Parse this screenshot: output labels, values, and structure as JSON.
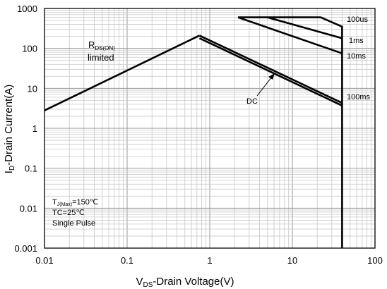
{
  "chart_data": {
    "type": "line",
    "title": "",
    "xscale": "log",
    "yscale": "log",
    "xlim": [
      0.01,
      100
    ],
    "ylim": [
      0.001,
      1000
    ],
    "x_tick_labels": [
      "0.01",
      "0.1",
      "1",
      "10",
      "100"
    ],
    "y_tick_labels": [
      "1000",
      "100",
      "10",
      "1",
      "0.1",
      "0.01",
      "0.001"
    ],
    "xlabel": {
      "main": "V",
      "sub": "DS",
      "rest": "-Drain Voltage(V)"
    },
    "ylabel": {
      "main": "I",
      "sub": "D",
      "rest": "-Drain Current(A)"
    },
    "grid": true,
    "series": [
      {
        "name": "RDS(ON) limited",
        "x": [
          0.01,
          0.75
        ],
        "y": [
          2.8,
          210
        ]
      },
      {
        "name": "100us",
        "x": [
          2.2,
          22,
          40,
          40
        ],
        "y": [
          600,
          600,
          350,
          0.001
        ]
      },
      {
        "name": "1ms",
        "x": [
          5,
          40
        ],
        "y": [
          600,
          180
        ]
      },
      {
        "name": "10ms",
        "x": [
          2.2,
          40
        ],
        "y": [
          600,
          75
        ]
      },
      {
        "name": "100ms",
        "x": [
          0.75,
          40
        ],
        "y": [
          210,
          4.3
        ]
      },
      {
        "name": "DC",
        "x": [
          0.75,
          40
        ],
        "y": [
          180,
          3.7
        ]
      }
    ],
    "labels": {
      "us100": "100us",
      "ms1": "1ms",
      "ms10": "10ms",
      "ms100": "100ms",
      "dc": "DC",
      "rds_main": "R",
      "rds_sub": "DS(ON)",
      "rds_line2": "limited"
    },
    "conditions": {
      "line1_main": "T",
      "line1_sub": "J(Max)",
      "line1_rest": "=150℃",
      "line2": "TC=25℃",
      "line3": "Single Pulse"
    }
  }
}
